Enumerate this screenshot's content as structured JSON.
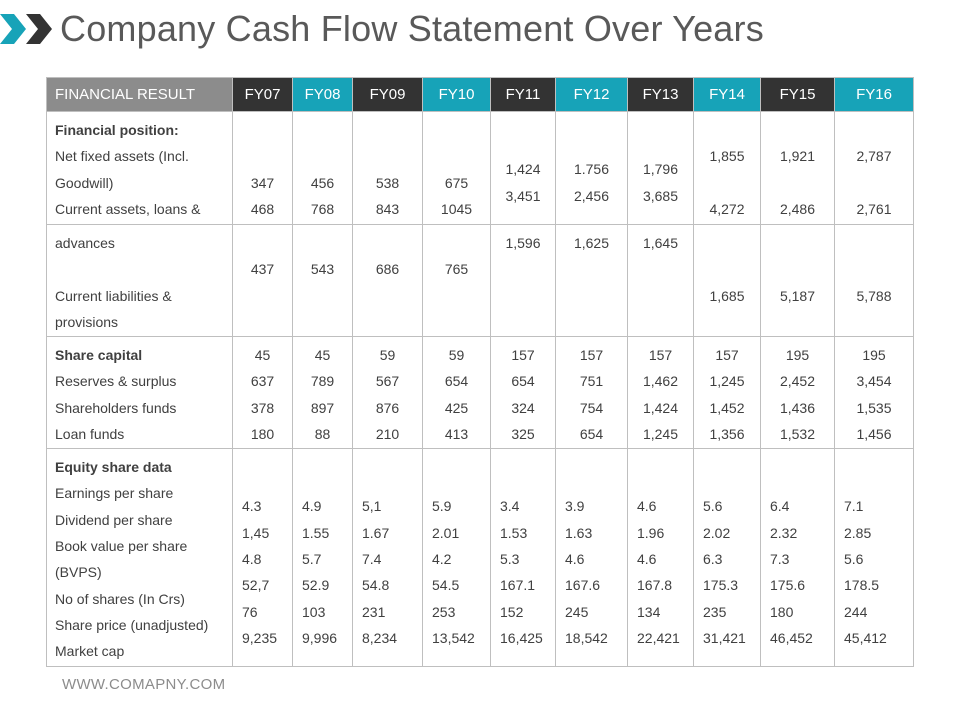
{
  "page": {
    "title": "Company Cash Flow Statement Over Years",
    "footer": "WWW.COMAPNY.COM"
  },
  "colors": {
    "header_gray": "#8c8c8c",
    "header_dark": "#333333",
    "header_teal": "#17a3b8",
    "icon_teal": "#17a3b8",
    "icon_dark": "#333333"
  },
  "table": {
    "first_header": "FINANCIAL RESULT",
    "years": [
      "FY07",
      "FY08",
      "FY09",
      "FY10",
      "FY11",
      "FY12",
      "FY13",
      "FY14",
      "FY15",
      "FY16"
    ],
    "position": {
      "labels": [
        "Financial position:",
        "Net fixed assets (Incl.",
        "Goodwill)",
        "Current assets, loans &"
      ],
      "cols": [
        [
          "347",
          "468"
        ],
        [
          "456",
          "768"
        ],
        [
          "538",
          "843"
        ],
        [
          "675",
          "1045"
        ],
        [
          "1,424",
          "3,451"
        ],
        [
          "1.756",
          "2,456"
        ],
        [
          "1,796",
          "3,685"
        ],
        [
          "1,855",
          "4,272"
        ],
        [
          "1,921",
          "2,486"
        ],
        [
          "2,787",
          "2,761"
        ]
      ]
    },
    "advances": {
      "labels": [
        "advances",
        "Current liabilities &",
        "provisions"
      ],
      "cols": [
        "437",
        "543",
        "686",
        "765",
        "1,596",
        "1,625",
        "1,645",
        "1,685",
        "5,187",
        "5,788"
      ]
    },
    "capital": {
      "labels": [
        "Share capital",
        "Reserves & surplus",
        "Shareholders funds",
        "Loan funds"
      ],
      "cols": [
        [
          "45",
          "637",
          "378",
          "180"
        ],
        [
          "45",
          "789",
          "897",
          "88"
        ],
        [
          "59",
          "567",
          "876",
          "210"
        ],
        [
          "59",
          "654",
          "425",
          "413"
        ],
        [
          "157",
          "654",
          "324",
          "325"
        ],
        [
          "157",
          "751",
          "754",
          "654"
        ],
        [
          "157",
          "1,462",
          "1,424",
          "1,245"
        ],
        [
          "157",
          "1,245",
          "1,452",
          "1,356"
        ],
        [
          "195",
          "2,452",
          "1,436",
          "1,532"
        ],
        [
          "195",
          "3,454",
          "1,535",
          "1,456"
        ]
      ]
    },
    "equity": {
      "labels": [
        "Equity share data",
        "Earnings per share",
        "Dividend per share",
        "Book value per share",
        "(BVPS)",
        "No of shares (In Crs)",
        "Share price (unadjusted)",
        "Market cap"
      ],
      "cols": [
        [
          "4.3",
          "1,45",
          "4.8",
          "52,7",
          "76",
          "9,235"
        ],
        [
          "4.9",
          "1.55",
          "5.7",
          "52.9",
          "103",
          "9,996"
        ],
        [
          "5,1",
          "1.67",
          "7.4",
          "54.8",
          "231",
          "8,234"
        ],
        [
          "5.9",
          "2.01",
          "4.2",
          "54.5",
          "253",
          "13,542"
        ],
        [
          "3.4",
          "1.53",
          "5.3",
          "167.1",
          "152",
          "16,425"
        ],
        [
          "3.9",
          "1.63",
          "4.6",
          "167.6",
          "245",
          "18,542"
        ],
        [
          "4.6",
          "1.96",
          "4.6",
          "167.8",
          "134",
          "22,421"
        ],
        [
          "5.6",
          "2.02",
          "6.3",
          "175.3",
          "235",
          "31,421"
        ],
        [
          "6.4",
          "2.32",
          "7.3",
          "175.6",
          "180",
          "46,452"
        ],
        [
          "7.1",
          "2.85",
          "5.6",
          "178.5",
          "244",
          "45,412"
        ]
      ]
    }
  }
}
